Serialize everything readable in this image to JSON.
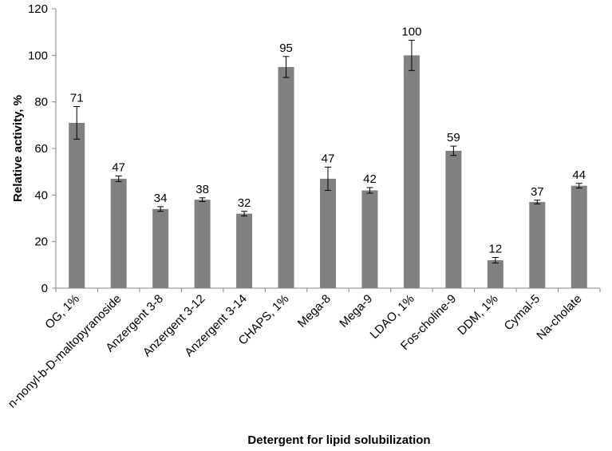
{
  "chart_data": {
    "type": "bar",
    "title": "",
    "xlabel": "Detergent for lipid solubilization",
    "ylabel": "Relative activity, %",
    "ylim": [
      0,
      120
    ],
    "yticks": [
      0,
      20,
      40,
      60,
      80,
      100,
      120
    ],
    "grid": false,
    "legend": "none",
    "bar_color": "#808080",
    "categories": [
      "OG, 1%",
      "n-nonyl-b-D-maltopyranoside",
      "Anzergent 3-8",
      "Anzergent 3-12",
      "Anzergent 3-14",
      "CHAPS, 1%",
      "Mega-8",
      "Mega-9",
      "LDAO, 1%",
      "Fos-choline-9",
      "DDM, 1%",
      "Cymal-5",
      "Na-cholate"
    ],
    "values": [
      71,
      47,
      34,
      38,
      32,
      95,
      47,
      42,
      100,
      59,
      12,
      37,
      44
    ],
    "errors": [
      7,
      1.2,
      1,
      0.8,
      1,
      4.5,
      5,
      1.2,
      6.5,
      2,
      1.2,
      0.8,
      1
    ],
    "data_labels": [
      "71",
      "47",
      "34",
      "38",
      "32",
      "95",
      "47",
      "42",
      "100",
      "59",
      "12",
      "37",
      "44"
    ]
  }
}
